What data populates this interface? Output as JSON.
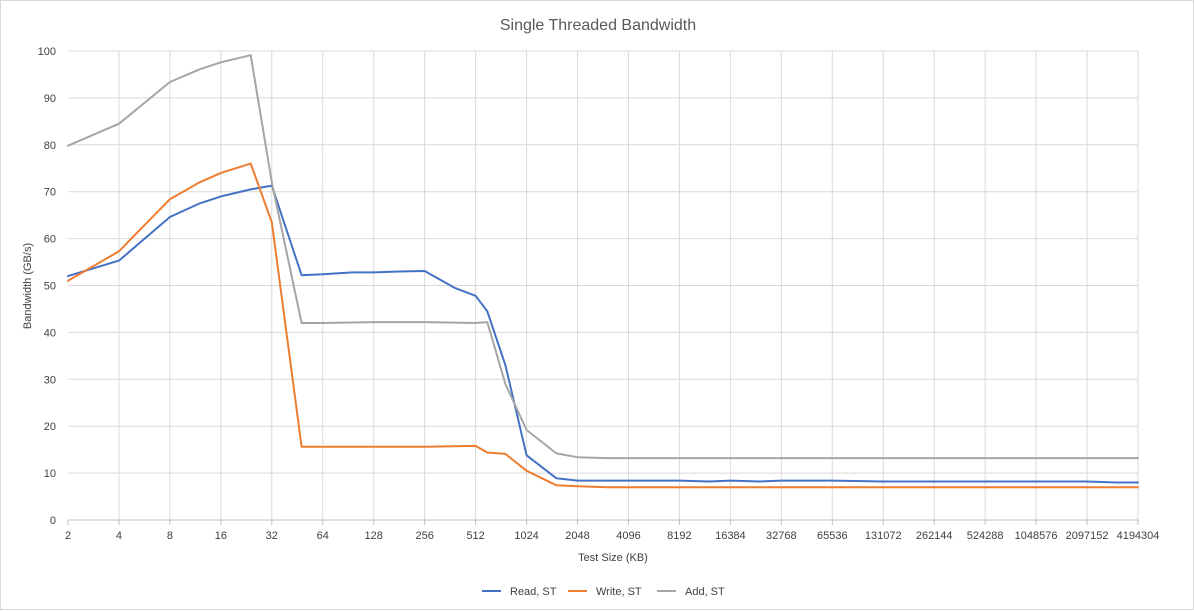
{
  "chart_data": {
    "type": "line",
    "title": "Single Threaded Bandwidth",
    "xlabel": "Test Size (KB)",
    "ylabel": "Bandwidth (GB/s)",
    "ylim": [
      0,
      100
    ],
    "yticks": [
      0,
      10,
      20,
      30,
      40,
      50,
      60,
      70,
      80,
      90,
      100
    ],
    "xscale": "log2",
    "xticks": [
      "2",
      "4",
      "8",
      "16",
      "32",
      "64",
      "128",
      "256",
      "512",
      "1024",
      "2048",
      "4096",
      "8192",
      "16384",
      "32768",
      "65536",
      "131072",
      "262144",
      "524288",
      "1048576",
      "2097152",
      "4194304"
    ],
    "grid": true,
    "legend": "bottom",
    "series": [
      {
        "name": "Read, ST",
        "color": "#4472c4",
        "points": [
          [
            2,
            52
          ],
          [
            4,
            55.3
          ],
          [
            8,
            64.6
          ],
          [
            12,
            67.5
          ],
          [
            16,
            69
          ],
          [
            24,
            70.5
          ],
          [
            32,
            71.3
          ],
          [
            48,
            52.2
          ],
          [
            64,
            52.4
          ],
          [
            96,
            52.8
          ],
          [
            128,
            52.8
          ],
          [
            192,
            53
          ],
          [
            256,
            53.1
          ],
          [
            384,
            49.5
          ],
          [
            512,
            47.8
          ],
          [
            600,
            44.5
          ],
          [
            768,
            33
          ],
          [
            1024,
            13.8
          ],
          [
            1536,
            8.9
          ],
          [
            2048,
            8.4
          ],
          [
            3072,
            8.4
          ],
          [
            4096,
            8.4
          ],
          [
            8192,
            8.4
          ],
          [
            12288,
            8.2
          ],
          [
            16384,
            8.4
          ],
          [
            24576,
            8.2
          ],
          [
            32768,
            8.4
          ],
          [
            65536,
            8.4
          ],
          [
            131072,
            8.2
          ],
          [
            262144,
            8.2
          ],
          [
            524288,
            8.2
          ],
          [
            1048576,
            8.2
          ],
          [
            2097152,
            8.2
          ],
          [
            3145728,
            8
          ],
          [
            4194304,
            8
          ]
        ]
      },
      {
        "name": "Write, ST",
        "color": "#ed7d31",
        "points": [
          [
            2,
            51
          ],
          [
            4,
            57.3
          ],
          [
            8,
            68.4
          ],
          [
            12,
            72
          ],
          [
            16,
            74
          ],
          [
            24,
            76
          ],
          [
            32,
            63.5
          ],
          [
            48,
            15.6
          ],
          [
            64,
            15.6
          ],
          [
            128,
            15.6
          ],
          [
            256,
            15.6
          ],
          [
            512,
            15.8
          ],
          [
            600,
            14.4
          ],
          [
            768,
            14.1
          ],
          [
            1024,
            10.5
          ],
          [
            1536,
            7.4
          ],
          [
            2048,
            7.2
          ],
          [
            3072,
            7
          ],
          [
            4096,
            7
          ],
          [
            8192,
            7
          ],
          [
            16384,
            7
          ],
          [
            32768,
            7
          ],
          [
            65536,
            7
          ],
          [
            131072,
            7
          ],
          [
            262144,
            7
          ],
          [
            524288,
            7
          ],
          [
            1048576,
            7
          ],
          [
            2097152,
            7
          ],
          [
            4194304,
            7
          ]
        ]
      },
      {
        "name": "Add, ST",
        "color": "#a5a5a5",
        "points": [
          [
            2,
            79.8
          ],
          [
            4,
            84.5
          ],
          [
            8,
            93.4
          ],
          [
            12,
            96.1
          ],
          [
            16,
            97.6
          ],
          [
            24,
            99.1
          ],
          [
            32,
            72
          ],
          [
            48,
            42
          ],
          [
            64,
            42
          ],
          [
            128,
            42.2
          ],
          [
            256,
            42.2
          ],
          [
            512,
            42
          ],
          [
            600,
            42.2
          ],
          [
            768,
            29
          ],
          [
            1024,
            19.2
          ],
          [
            1536,
            14.2
          ],
          [
            2048,
            13.4
          ],
          [
            3072,
            13.2
          ],
          [
            4096,
            13.2
          ],
          [
            8192,
            13.2
          ],
          [
            16384,
            13.2
          ],
          [
            32768,
            13.2
          ],
          [
            65536,
            13.2
          ],
          [
            131072,
            13.2
          ],
          [
            262144,
            13.2
          ],
          [
            524288,
            13.2
          ],
          [
            1048576,
            13.2
          ],
          [
            2097152,
            13.2
          ],
          [
            4194304,
            13.2
          ]
        ]
      }
    ]
  }
}
